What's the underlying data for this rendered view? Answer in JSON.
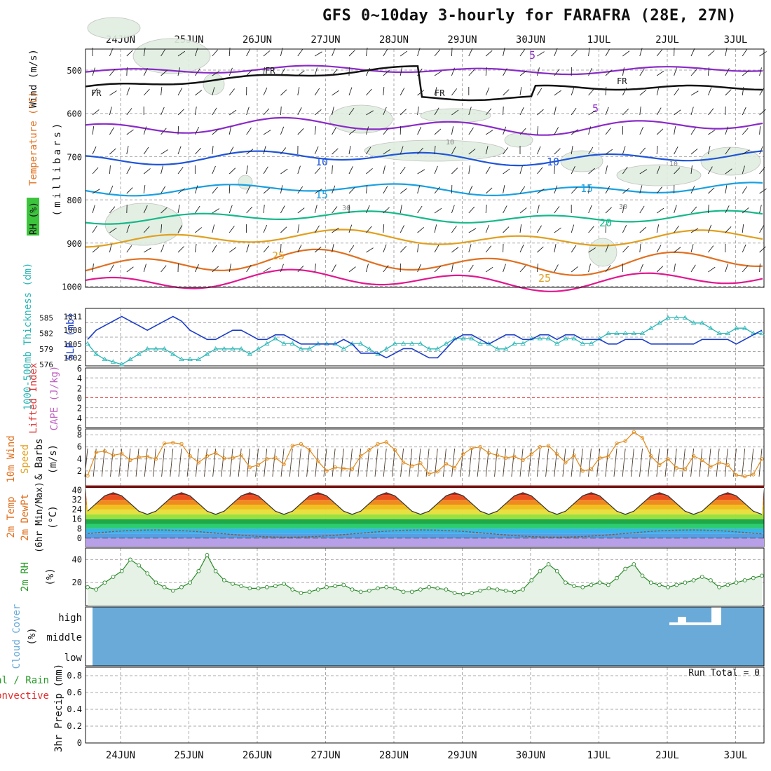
{
  "title": "GFS 0~10day 3-hourly for FARAFRA (28E, 27N)",
  "dates": [
    "24JUN",
    "25JUN",
    "26JUN",
    "27JUN",
    "28JUN",
    "29JUN",
    "30JUN",
    "1JUL",
    "2JUL",
    "3JUL"
  ],
  "panels": {
    "upper_air": {
      "ylabel_units": "(millibars)",
      "label_wind": "Wind (m/s)",
      "label_temp": "Temperature (°C)",
      "label_rh": "RH (%)",
      "pressure_ticks": [
        500,
        600,
        700,
        800,
        900,
        1000
      ],
      "isotherm_labels": [
        "5",
        "5",
        "10",
        "10",
        "15",
        "15",
        "20",
        "25",
        "25"
      ],
      "freezing_label": "FR",
      "rh_labels": [
        "10",
        "10",
        "30",
        "30"
      ]
    },
    "slp_thickness": {
      "label_thickness": "1000-500mb Thickness (dm)",
      "label_slp": "SLP (mb)",
      "thickness_ticks": [
        576,
        579,
        582,
        585
      ],
      "slp_ticks": [
        1002,
        1005,
        1008,
        1011
      ]
    },
    "cape_li": {
      "label_li": "Lifted Index",
      "label_cape": "CAPE (J/kg)",
      "li_ticks": [
        6,
        4,
        2,
        0,
        -2,
        -4,
        -6
      ]
    },
    "wind10m": {
      "label1": "10m Wind",
      "label2": "Speed",
      "label3": "& Barbs",
      "units": "(m/s)",
      "ticks": [
        2,
        4,
        6,
        8
      ]
    },
    "temp2m": {
      "label1": "2m Temp",
      "label2": "2m DewPt",
      "label3": "(6hr Min/Max)",
      "units": "(°C)",
      "ticks": [
        0,
        8,
        16,
        24,
        32,
        40
      ]
    },
    "rh2m": {
      "label": "2m RH",
      "units": "(%)",
      "ticks": [
        20,
        40
      ]
    },
    "cloud": {
      "label": "Cloud Cover",
      "units": "(%)",
      "levels": [
        "high",
        "middle",
        "low"
      ]
    },
    "precip": {
      "label1": "Total / Rain",
      "label2": "Convective",
      "ylabel": "3hr Precip (mm)",
      "ticks": [
        "0",
        "0.2",
        "0.4",
        "0.6",
        "0.8"
      ],
      "run_total": "Run Total = 0"
    }
  },
  "colors": {
    "slp": "#1b3cc8",
    "thickness": "#2ab6b6",
    "wind_speed": "#e08a1a",
    "rh_fill": "#9ccf9c",
    "cloud": "#6aaad8",
    "li": "#e03030",
    "cape": "#c060c0"
  },
  "chart_data": [
    {
      "type": "line",
      "title": "1000-500mb Thickness / SLP",
      "series": [
        {
          "name": "SLP (mb)",
          "values": [
            1006,
            1008,
            1009,
            1010,
            1011,
            1010,
            1009,
            1008,
            1009,
            1010,
            1011,
            1010,
            1008,
            1007,
            1006,
            1006,
            1007,
            1008,
            1008,
            1007,
            1006,
            1006,
            1007,
            1007,
            1006,
            1005,
            1005,
            1005,
            1005,
            1005,
            1006,
            1005,
            1003,
            1003,
            1003,
            1002,
            1003,
            1004,
            1004,
            1003,
            1002,
            1002,
            1004,
            1006,
            1007,
            1007,
            1006,
            1005,
            1006,
            1007,
            1007,
            1006,
            1006,
            1007,
            1007,
            1006,
            1007,
            1007,
            1006,
            1006,
            1006,
            1005,
            1005,
            1006,
            1006,
            1006,
            1005,
            1005,
            1005,
            1005,
            1005,
            1005,
            1006,
            1006,
            1006,
            1006,
            1005,
            1006,
            1007,
            1008
          ]
        },
        {
          "name": "1000-500mb Thickness (dm)",
          "values": [
            580,
            578,
            577,
            576.5,
            576,
            577,
            578,
            579,
            579,
            579,
            578,
            577,
            577,
            577,
            578,
            579,
            579,
            579,
            579,
            578,
            579,
            580,
            581,
            580,
            580,
            579,
            579,
            580,
            580,
            580,
            579,
            580,
            580,
            579,
            578,
            579,
            580,
            580,
            580,
            580,
            579,
            579,
            580,
            581,
            581,
            581,
            580,
            580,
            579,
            579,
            580,
            580,
            581,
            581,
            581,
            580,
            581,
            581,
            580,
            580,
            581,
            582,
            582,
            582,
            582,
            582,
            583,
            584,
            585,
            585,
            585,
            584,
            584,
            583,
            582,
            582,
            583,
            583,
            582,
            582
          ]
        }
      ]
    },
    {
      "type": "line",
      "title": "10m Wind Speed (m/s)",
      "values": [
        1.2,
        5.1,
        5.3,
        4.6,
        4.9,
        3.8,
        4.3,
        4.4,
        4.0,
        6.6,
        6.7,
        6.5,
        4.5,
        3.4,
        4.5,
        5.0,
        4.1,
        4.2,
        4.6,
        2.6,
        3.0,
        4.0,
        4.2,
        3.1,
        6.2,
        6.5,
        5.5,
        3.6,
        2.0,
        2.6,
        2.4,
        2.3,
        4.5,
        5.5,
        6.5,
        6.8,
        5.5,
        3.4,
        2.8,
        3.3,
        1.5,
        1.9,
        3.2,
        2.5,
        4.8,
        5.8,
        6.0,
        5.0,
        4.6,
        4.2,
        4.4,
        3.8,
        4.8,
        6.0,
        6.2,
        4.8,
        3.4,
        4.6,
        2.0,
        2.3,
        4.2,
        4.4,
        6.6,
        7.0,
        8.5,
        7.5,
        4.5,
        3.0,
        4.0,
        2.5,
        2.3,
        4.5,
        3.8,
        2.7,
        3.4,
        3.0,
        1.3,
        1.1,
        1.4,
        4.0
      ]
    },
    {
      "type": "area",
      "title": "2m RH (%)",
      "values": [
        16,
        14,
        20,
        25,
        30,
        40,
        35,
        28,
        20,
        16,
        13,
        16,
        20,
        30,
        44,
        30,
        22,
        19,
        17,
        15,
        15,
        16,
        17,
        19,
        14,
        11,
        12,
        14,
        16,
        17,
        18,
        14,
        12,
        13,
        15,
        16,
        15,
        12,
        12,
        14,
        16,
        15,
        14,
        11,
        10,
        11,
        13,
        15,
        14,
        13,
        12,
        14,
        22,
        30,
        36,
        30,
        20,
        17,
        16,
        18,
        20,
        18,
        24,
        32,
        36,
        26,
        20,
        18,
        16,
        18,
        20,
        22,
        25,
        22,
        16,
        18,
        20,
        22,
        24,
        26
      ]
    }
  ]
}
